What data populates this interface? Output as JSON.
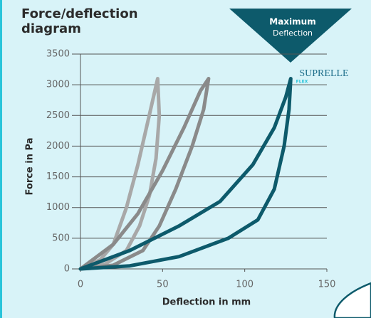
{
  "chart_data": {
    "type": "line",
    "title": "Force/deflection diagram",
    "xlabel": "Deflection in mm",
    "ylabel": "Force in Pa",
    "xlim": [
      0,
      150
    ],
    "xticks": [
      0,
      50,
      100,
      150
    ],
    "ylim": [
      0,
      3500
    ],
    "yticks": [
      0,
      500,
      1000,
      1500,
      2000,
      2500,
      3000,
      3500
    ],
    "grid": true,
    "annotation": {
      "title": "Maximum",
      "text": "Deflection"
    },
    "logo": {
      "text": "SUPRELLE",
      "sub": "FLEX"
    },
    "series": [
      {
        "color": "#a8a8a8",
        "x": [
          0,
          12,
          20,
          28,
          35,
          41,
          47,
          48,
          46,
          42,
          36,
          28,
          15,
          0
        ],
        "values": [
          0,
          150,
          400,
          1000,
          1700,
          2400,
          3100,
          2500,
          1800,
          1200,
          700,
          300,
          80,
          0
        ]
      },
      {
        "color": "#8a8a8a",
        "x": [
          0,
          20,
          35,
          50,
          63,
          73,
          78,
          75,
          68,
          58,
          48,
          38,
          20,
          0
        ],
        "values": [
          0,
          400,
          900,
          1600,
          2300,
          2900,
          3100,
          2600,
          2000,
          1300,
          700,
          300,
          60,
          0
        ]
      },
      {
        "color": "#0d5a6b",
        "x": [
          0,
          30,
          60,
          85,
          105,
          118,
          125,
          128,
          127,
          124,
          118,
          108,
          90,
          60,
          30,
          0
        ],
        "values": [
          0,
          300,
          700,
          1100,
          1700,
          2300,
          2800,
          3100,
          2600,
          2000,
          1300,
          800,
          500,
          200,
          50,
          0
        ]
      }
    ]
  }
}
